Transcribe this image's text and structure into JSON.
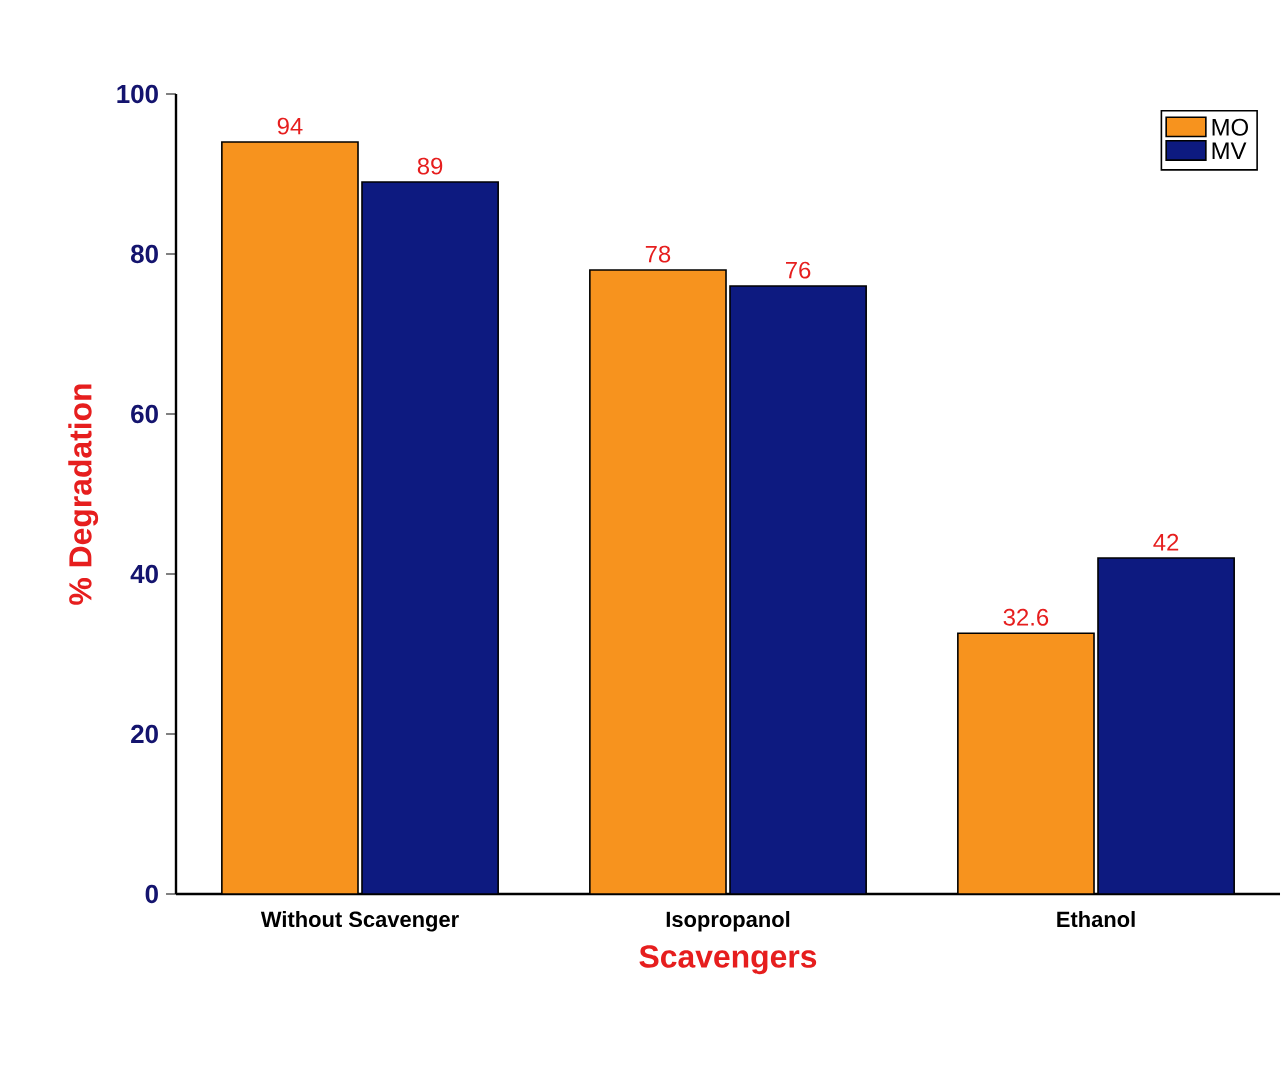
{
  "chart_data": {
    "type": "bar",
    "xlabel": "Scavengers",
    "ylabel": "% Degradation",
    "categories": [
      "Without Scavenger",
      "Isopropanol",
      "Ethanol"
    ],
    "series": [
      {
        "name": "MO",
        "color": "#f7931e",
        "values": [
          94,
          78,
          32.6
        ]
      },
      {
        "name": "MV",
        "color": "#0d1a80",
        "values": [
          89,
          76,
          42
        ]
      }
    ],
    "ylim": [
      0,
      100
    ],
    "yticks": [
      0,
      20,
      40,
      60,
      80,
      100
    ],
    "data_labels": true,
    "legend": "top right",
    "grid": false
  }
}
